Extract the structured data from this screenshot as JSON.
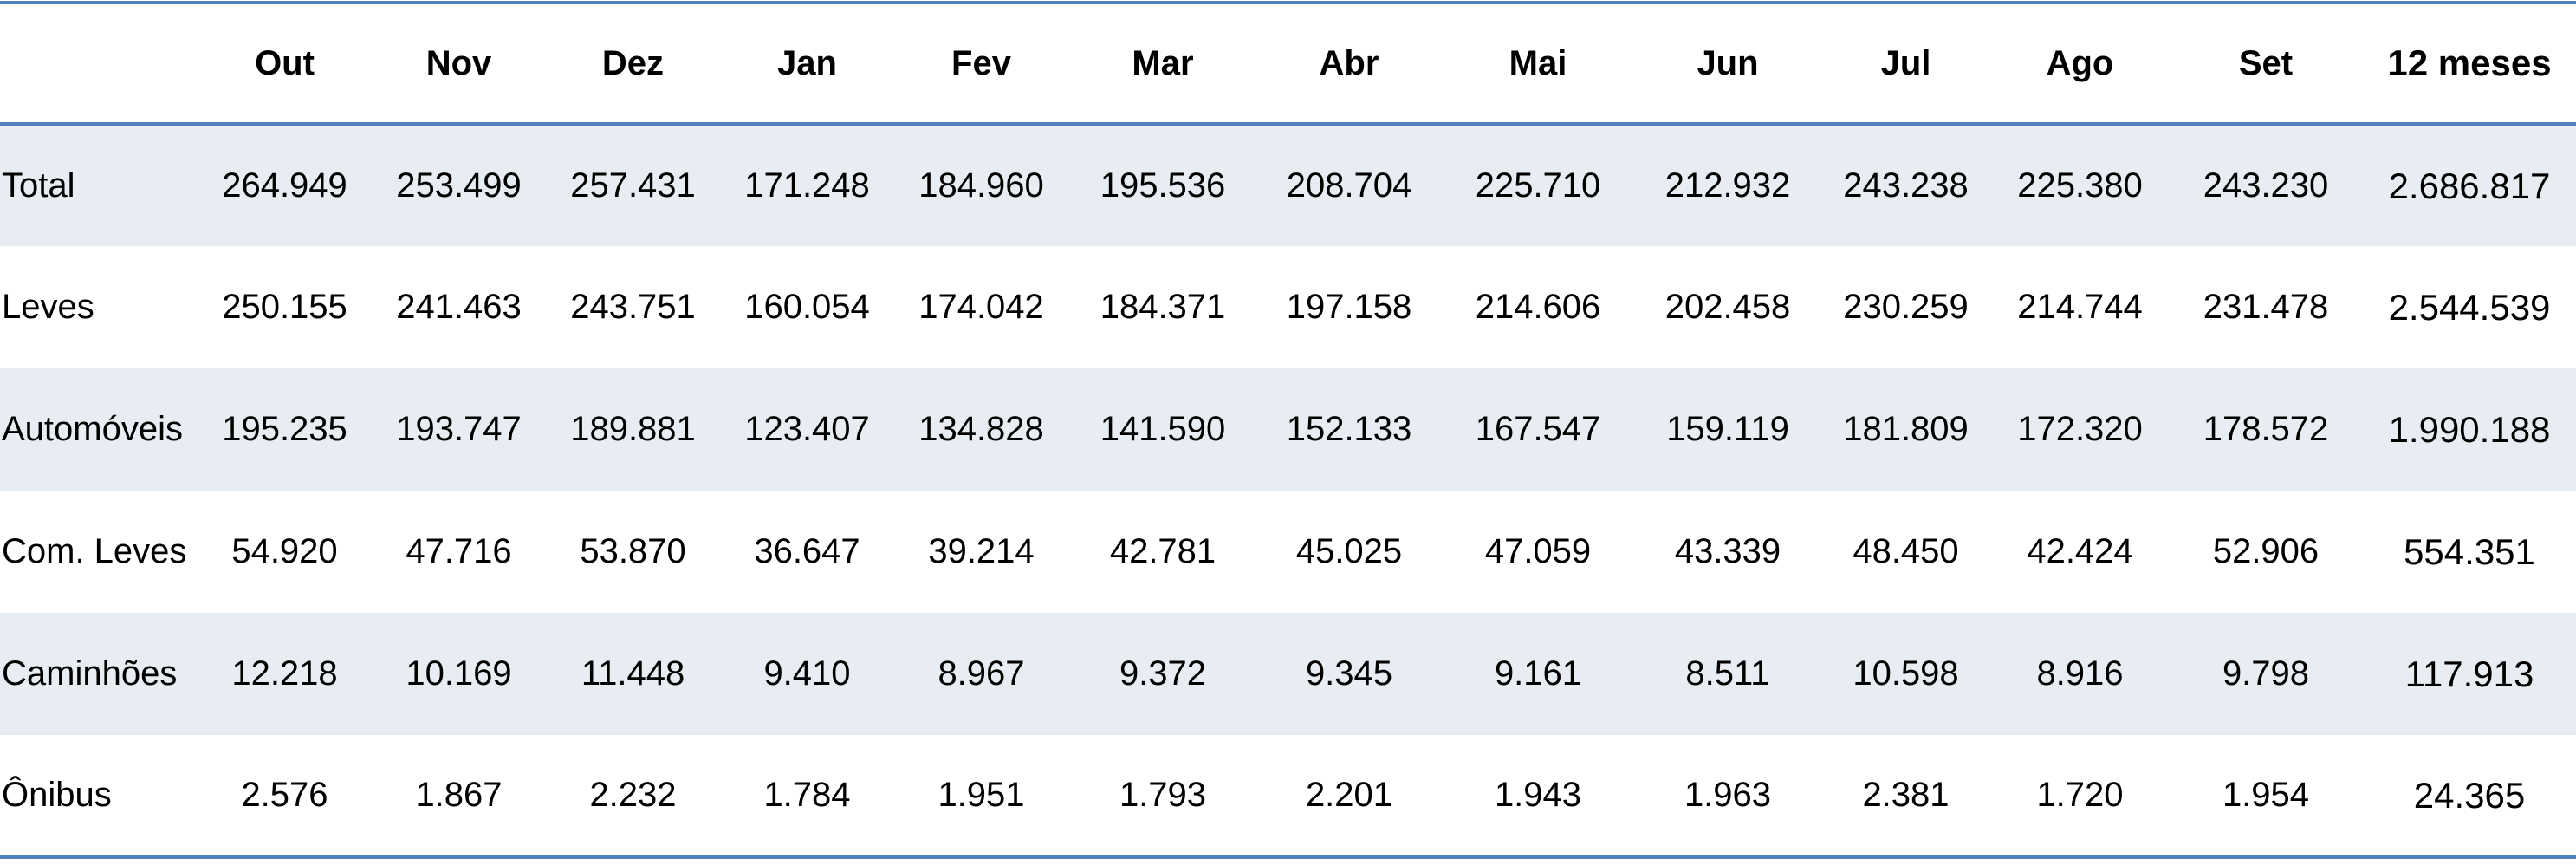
{
  "table": {
    "header": [
      "Out",
      "Nov",
      "Dez",
      "Jan",
      "Fev",
      "Mar",
      "Abr",
      "Mai",
      "Jun",
      "Jul",
      "Ago",
      "Set",
      "12 meses"
    ],
    "rows": [
      [
        "Total",
        "264.949",
        "253.499",
        "257.431",
        "171.248",
        "184.960",
        "195.536",
        "208.704",
        "225.710",
        "212.932",
        "243.238",
        "225.380",
        "243.230",
        "2.686.817"
      ],
      [
        "Leves",
        "250.155",
        "241.463",
        "243.751",
        "160.054",
        "174.042",
        "184.371",
        "197.158",
        "214.606",
        "202.458",
        "230.259",
        "214.744",
        "231.478",
        "2.544.539"
      ],
      [
        "Automóveis",
        "195.235",
        "193.747",
        "189.881",
        "123.407",
        "134.828",
        "141.590",
        "152.133",
        "167.547",
        "159.119",
        "181.809",
        "172.320",
        "178.572",
        "1.990.188"
      ],
      [
        "Com. Leves",
        "54.920",
        "47.716",
        "53.870",
        "36.647",
        "39.214",
        "42.781",
        "45.025",
        "47.059",
        "43.339",
        "48.450",
        "42.424",
        "52.906",
        "554.351"
      ],
      [
        "Caminhões",
        "12.218",
        "10.169",
        "11.448",
        "9.410",
        "8.967",
        "9.372",
        "9.345",
        "9.161",
        "8.511",
        "10.598",
        "8.916",
        "9.798",
        "117.913"
      ],
      [
        "Ônibus",
        "2.576",
        "1.867",
        "2.232",
        "1.784",
        "1.951",
        "1.793",
        "2.201",
        "1.943",
        "1.963",
        "2.381",
        "1.720",
        "1.954",
        "24.365"
      ]
    ]
  }
}
